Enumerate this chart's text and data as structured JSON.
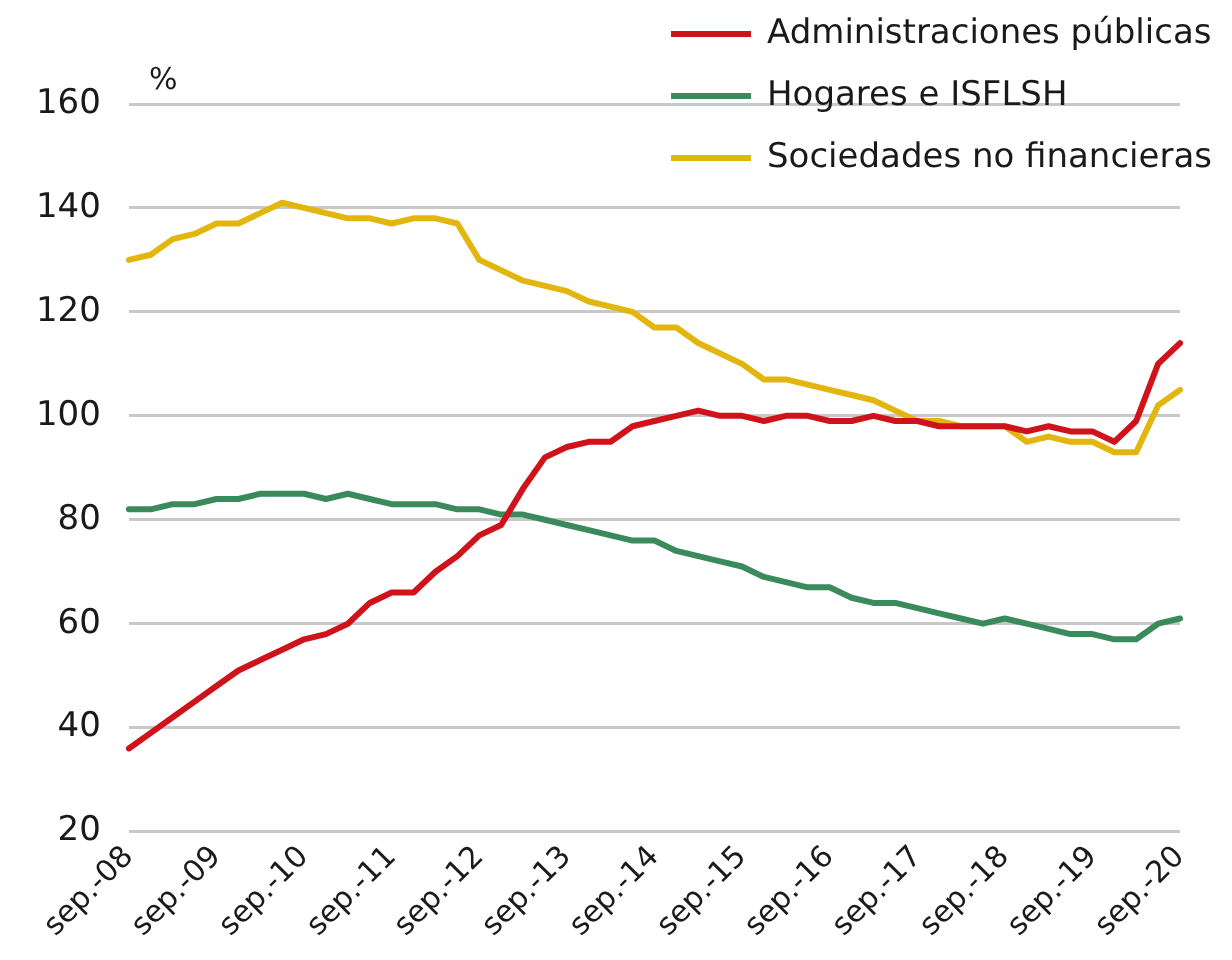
{
  "chart_data": {
    "type": "line",
    "ylabel": "%",
    "categories": [
      "sep.-08",
      null,
      null,
      null,
      "sep.-09",
      null,
      null,
      null,
      "sep.-10",
      null,
      null,
      null,
      "sep.-11",
      null,
      null,
      null,
      "sep.-12",
      null,
      null,
      null,
      "sep.-13",
      null,
      null,
      null,
      "sep.-14",
      null,
      null,
      null,
      "sep.-15",
      null,
      null,
      null,
      "sep.-16",
      null,
      null,
      null,
      "sep.-17",
      null,
      null,
      null,
      "sep.-18",
      null,
      null,
      null,
      "sep.-19",
      null,
      null,
      null,
      "sep.-20"
    ],
    "series": [
      {
        "name": "Administraciones públicas",
        "color": "#d0121b",
        "values": [
          36,
          39,
          42,
          45,
          48,
          51,
          53,
          55,
          57,
          58,
          60,
          64,
          66,
          66,
          70,
          73,
          77,
          79,
          86,
          92,
          94,
          95,
          95,
          98,
          99,
          100,
          101,
          100,
          100,
          99,
          100,
          100,
          99,
          99,
          100,
          99,
          99,
          98,
          98,
          98,
          98,
          97,
          98,
          97,
          97,
          95,
          99,
          110,
          114
        ]
      },
      {
        "name": "Hogares e ISFLSH",
        "color": "#3b8a5c",
        "values": [
          82,
          82,
          83,
          83,
          84,
          84,
          85,
          85,
          85,
          84,
          85,
          84,
          83,
          83,
          83,
          82,
          82,
          81,
          81,
          80,
          79,
          78,
          77,
          76,
          76,
          74,
          73,
          72,
          71,
          69,
          68,
          67,
          67,
          65,
          64,
          64,
          63,
          62,
          61,
          60,
          61,
          60,
          59,
          58,
          58,
          57,
          57,
          60,
          61
        ]
      },
      {
        "name": "Sociedades no financieras",
        "color": "#e2b60e",
        "values": [
          130,
          131,
          134,
          135,
          137,
          137,
          139,
          141,
          140,
          139,
          138,
          138,
          137,
          138,
          138,
          137,
          130,
          128,
          126,
          125,
          124,
          122,
          121,
          120,
          117,
          117,
          114,
          112,
          110,
          107,
          107,
          106,
          105,
          104,
          103,
          101,
          99,
          99,
          98,
          98,
          98,
          95,
          96,
          95,
          95,
          93,
          93,
          102,
          105
        ]
      }
    ],
    "ylim": [
      20,
      160
    ],
    "yticks": [
      20,
      40,
      60,
      80,
      100,
      120,
      140,
      160
    ],
    "grid": "y",
    "legend": "top right",
    "marker": "none",
    "line_style": "solid"
  }
}
